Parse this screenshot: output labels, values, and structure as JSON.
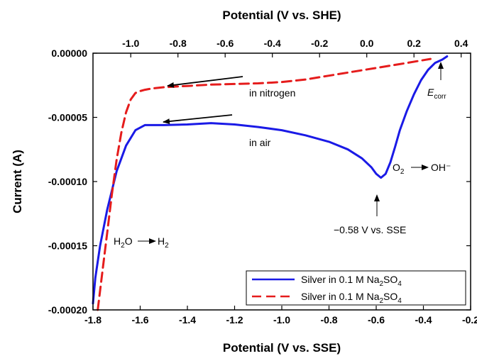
{
  "chart_data": {
    "type": "line",
    "title": "",
    "xlabel": "Potential (V vs. SSE)",
    "x2label": "Potential (V vs. SHE)",
    "ylabel": "Current (A)",
    "xlim": [
      -1.8,
      -0.2
    ],
    "ylim": [
      -0.0002,
      0
    ],
    "x2lim": [
      -1.16,
      0.44
    ],
    "xticks": [
      -1.8,
      -1.6,
      -1.4,
      -1.2,
      -1.0,
      -0.8,
      -0.6,
      -0.4,
      -0.2
    ],
    "xtick_labels": [
      "-1.8",
      "-1.6",
      "-1.4",
      "-1.2",
      "-1.0",
      "-0.8",
      "-0.6",
      "-0.4",
      "-0.2"
    ],
    "x2ticks": [
      -1.0,
      -0.8,
      -0.6,
      -0.4,
      -0.2,
      0.0,
      0.2,
      0.4
    ],
    "x2tick_labels": [
      "-1.0",
      "-0.8",
      "-0.6",
      "-0.4",
      "-0.2",
      "0.0",
      "0.2",
      "0.4"
    ],
    "yticks": [
      0,
      -5e-05,
      -0.0001,
      -0.00015,
      -0.0002
    ],
    "ytick_labels": [
      "0.00000",
      "-0.00005",
      "-0.00010",
      "-0.00015",
      "-0.00020"
    ],
    "grid": false,
    "legend_position": "bottom-right",
    "series": [
      {
        "name": "Silver in 0.1 M Na2SO4",
        "legend_label": {
          "prefix": "Silver in 0.1 M Na",
          "sub": "2",
          "suffix": "SO",
          "sub2": "4"
        },
        "color": "#1a1ae6",
        "style": "solid",
        "x": [
          -1.8,
          -1.79,
          -1.77,
          -1.74,
          -1.7,
          -1.66,
          -1.62,
          -1.58,
          -1.5,
          -1.4,
          -1.3,
          -1.2,
          -1.1,
          -1.0,
          -0.9,
          -0.8,
          -0.72,
          -0.66,
          -0.62,
          -0.6,
          -0.58,
          -0.56,
          -0.54,
          -0.52,
          -0.5,
          -0.47,
          -0.44,
          -0.41,
          -0.38,
          -0.35,
          -0.32,
          -0.3
        ],
        "y": [
          -0.000195,
          -0.000175,
          -0.00015,
          -0.000122,
          -9.2e-05,
          -7.2e-05,
          -6e-05,
          -5.6e-05,
          -5.6e-05,
          -5.55e-05,
          -5.45e-05,
          -5.55e-05,
          -5.75e-05,
          -6e-05,
          -6.4e-05,
          -6.9e-05,
          -7.5e-05,
          -8.2e-05,
          -8.9e-05,
          -9.4e-05,
          -9.7e-05,
          -9.4e-05,
          -8.5e-05,
          -7.3e-05,
          -6e-05,
          -4.5e-05,
          -3.2e-05,
          -2.1e-05,
          -1.3e-05,
          -7.5e-06,
          -5e-06,
          -2.5e-06
        ]
      },
      {
        "name": "Silver in 0.1 M Na2SO4",
        "legend_label": {
          "prefix": "Silver in 0.1 M Na",
          "sub": "2",
          "suffix": "SO",
          "sub2": "4"
        },
        "color": "#e51c1c",
        "style": "dashed",
        "x": [
          -1.78,
          -1.76,
          -1.74,
          -1.72,
          -1.7,
          -1.68,
          -1.66,
          -1.64,
          -1.62,
          -1.6,
          -1.58,
          -1.55,
          -1.5,
          -1.4,
          -1.3,
          -1.2,
          -1.1,
          -1.0,
          -0.9,
          -0.8,
          -0.7,
          -0.6,
          -0.5,
          -0.42,
          -0.37
        ],
        "y": [
          -0.0002,
          -0.00017,
          -0.00014,
          -0.00011,
          -8.3e-05,
          -6.2e-05,
          -4.6e-05,
          -3.6e-05,
          -3.1e-05,
          -2.95e-05,
          -2.85e-05,
          -2.75e-05,
          -2.65e-05,
          -2.55e-05,
          -2.45e-05,
          -2.4e-05,
          -2.35e-05,
          -2.25e-05,
          -2.05e-05,
          -1.75e-05,
          -1.45e-05,
          -1.15e-05,
          -8.5e-06,
          -6e-06,
          -4.5e-06
        ]
      }
    ],
    "annotations": {
      "in_nitrogen": "in nitrogen",
      "in_air": "in air",
      "e_corr_main": "E",
      "e_corr_sub": "corr",
      "o2_main": "O",
      "o2_sub": "2",
      "oh": "OH⁻",
      "h2o_pre": "H",
      "h2o_sub": "2",
      "h2o_post": "O",
      "h2_pre": "H",
      "h2_sub": "2",
      "peak_label": "−0.58 V vs. SSE"
    }
  }
}
